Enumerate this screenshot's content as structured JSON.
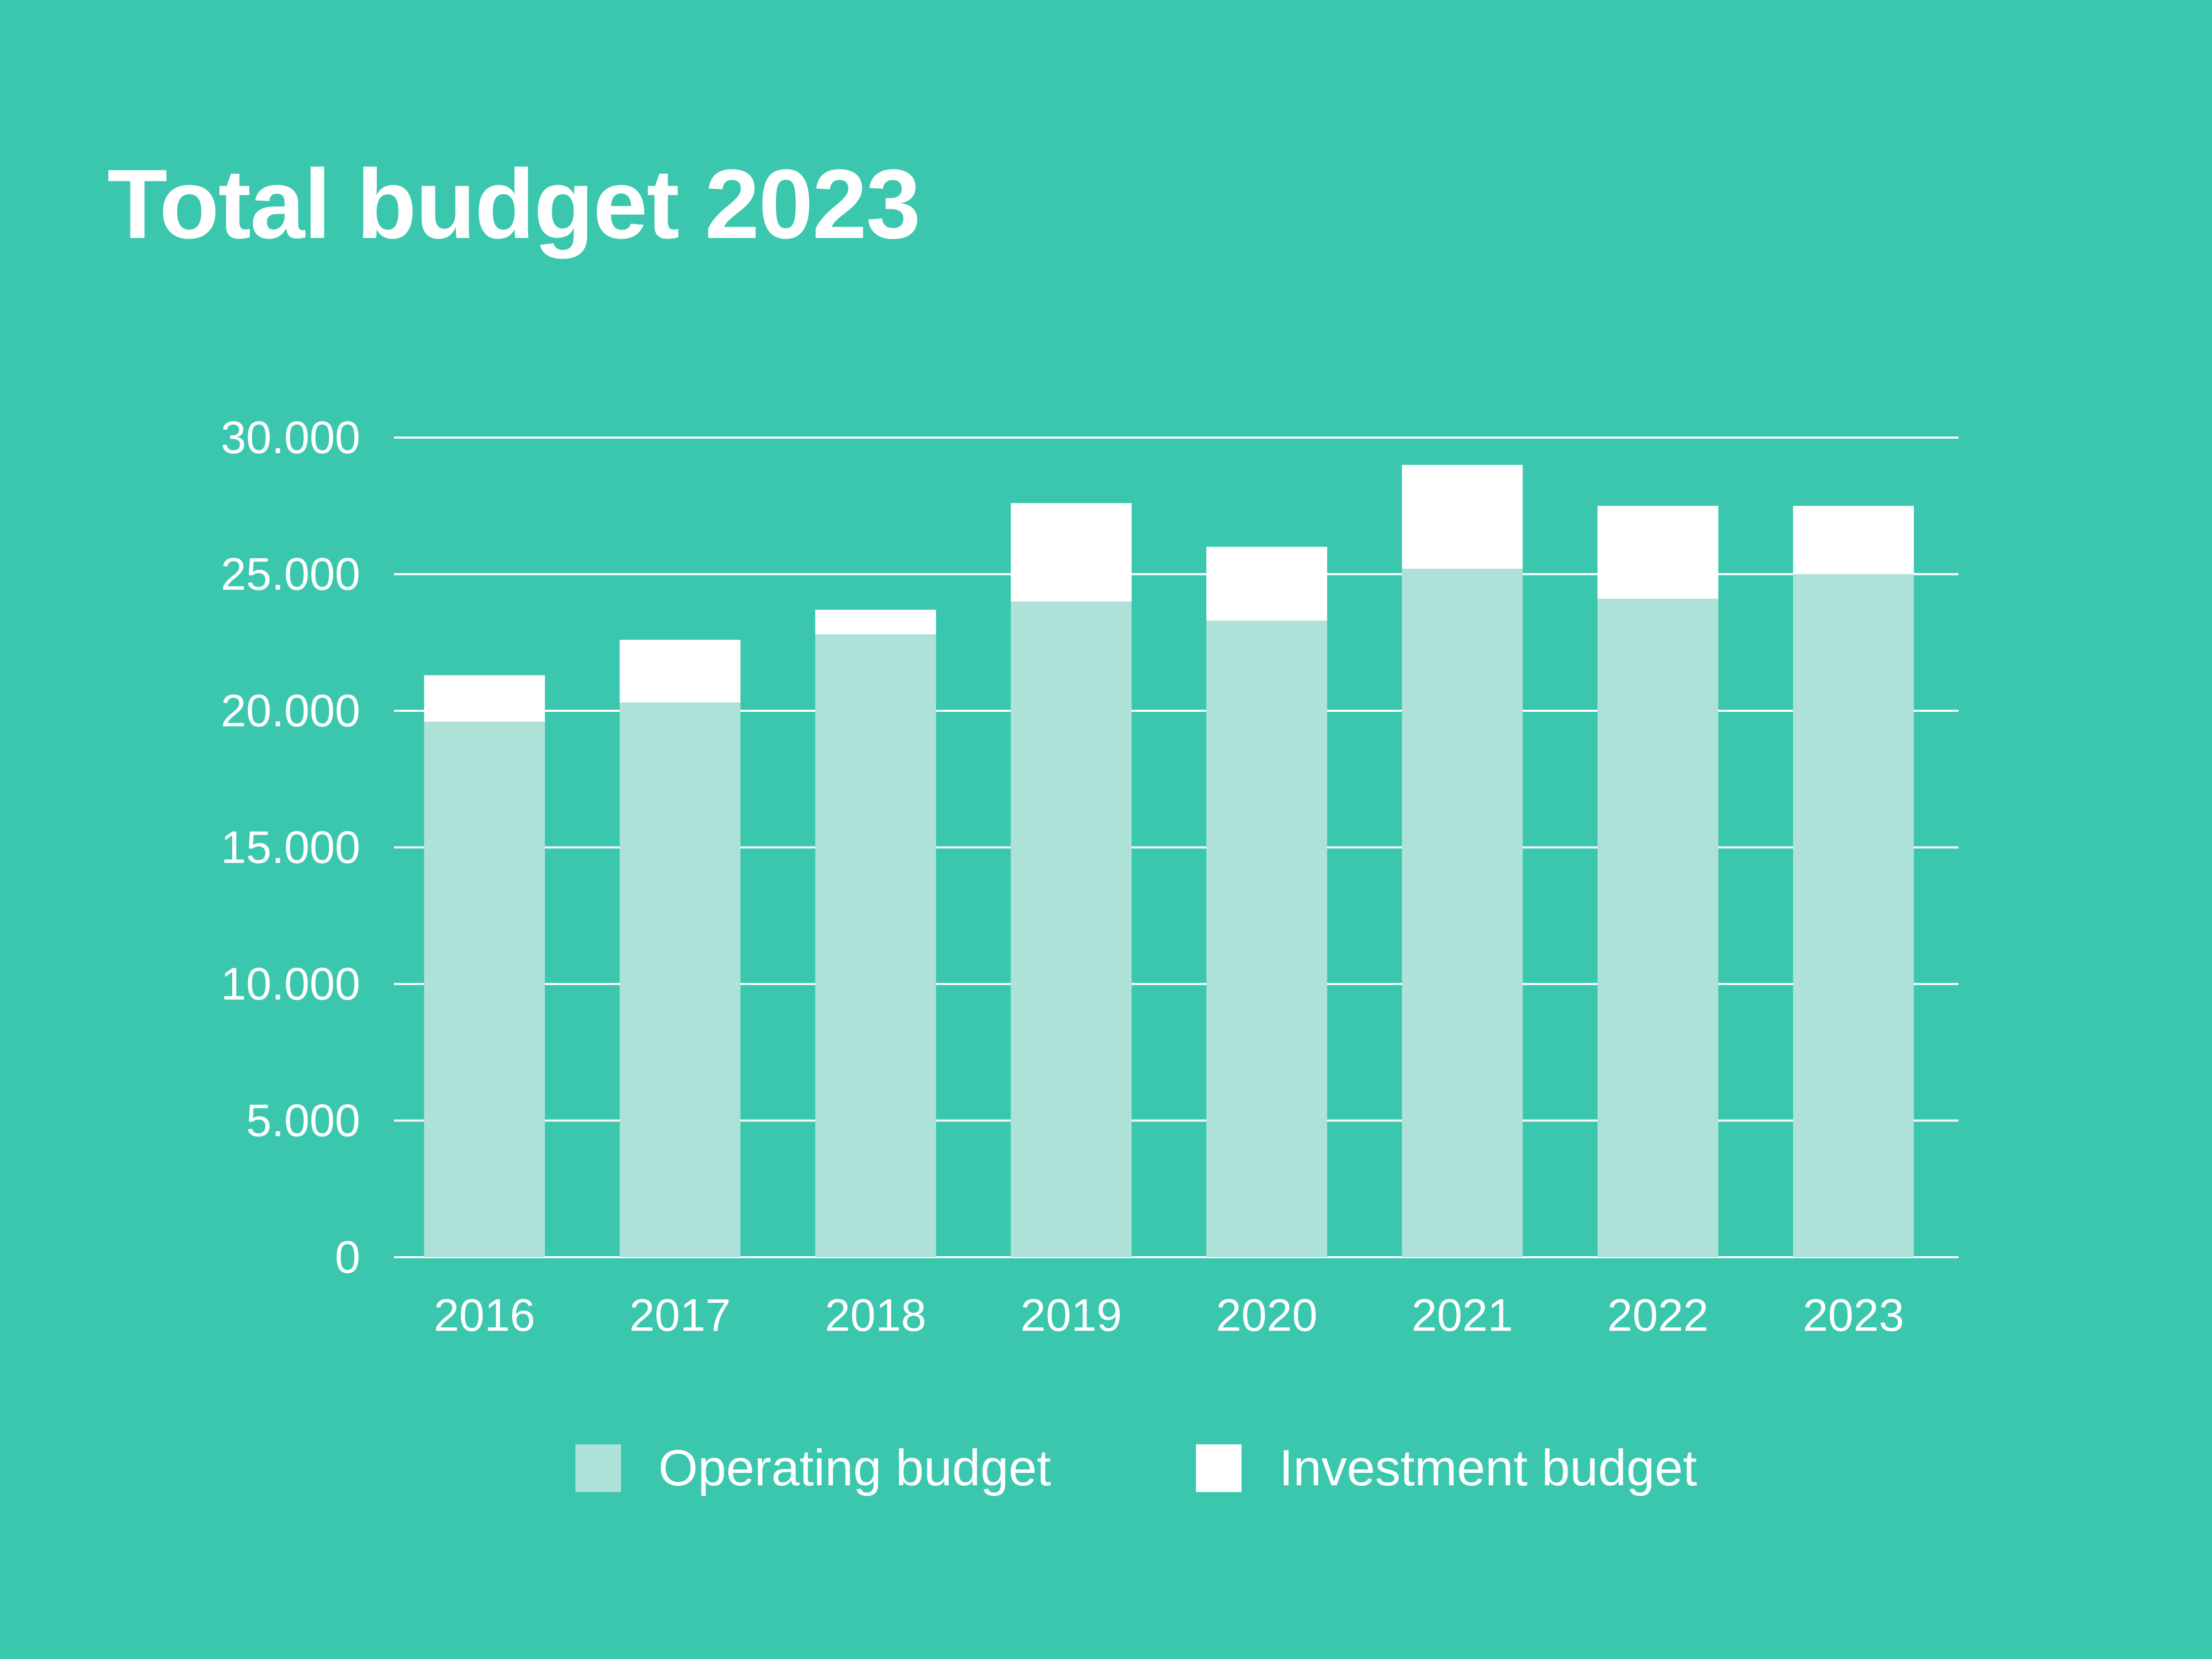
{
  "colors": {
    "background": "#3bc7ad",
    "operating": "#aee2d8",
    "investment": "#ffffff",
    "gridline": "#ffffff",
    "text": "#ffffff"
  },
  "chart_data": {
    "type": "bar",
    "stacked": true,
    "title": "Total budget 2023",
    "xlabel": "",
    "ylabel": "",
    "categories": [
      "2016",
      "2017",
      "2018",
      "2019",
      "2020",
      "2021",
      "2022",
      "2023"
    ],
    "series": [
      {
        "name": "Operating budget",
        "color": "#aee2d8",
        "values": [
          19600,
          20300,
          22800,
          24000,
          23300,
          25200,
          24100,
          25000
        ]
      },
      {
        "name": "Investment budget",
        "color": "#ffffff",
        "values": [
          1700,
          2300,
          900,
          3600,
          2700,
          3800,
          3400,
          2500
        ]
      }
    ],
    "ylim": [
      0,
      30000
    ],
    "yticks": [
      0,
      5000,
      10000,
      15000,
      20000,
      25000,
      30000
    ],
    "ytick_labels": [
      "0",
      "5.000",
      "10.000",
      "15.000",
      "20.000",
      "25.000",
      "30.000"
    ],
    "grid": true,
    "legend_position": "bottom-center"
  }
}
